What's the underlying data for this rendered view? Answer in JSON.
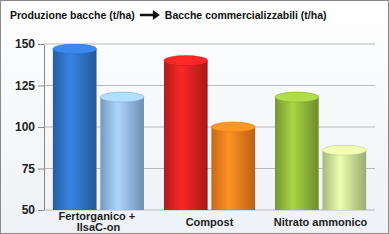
{
  "chart_data": {
    "type": "bar",
    "categories": [
      "Fertorganico + IlsaC-on",
      "Compost",
      "Nitrato ammonico"
    ],
    "series": [
      {
        "name": "Produzione bacche (t/ha)",
        "colors": [
          "#2e6fc0",
          "#d42020",
          "#8db33a"
        ],
        "values": [
          147,
          140,
          118
        ]
      },
      {
        "name": "Bacche commercializzabili (t/ha)",
        "colors": [
          "#8fb4e3",
          "#f07a1c",
          "#c5dc92"
        ],
        "values": [
          118,
          100,
          86
        ]
      }
    ],
    "ylim": [
      50,
      150
    ],
    "yticks": [
      50,
      75,
      100,
      125,
      150
    ],
    "grid": true,
    "legend": "top"
  }
}
